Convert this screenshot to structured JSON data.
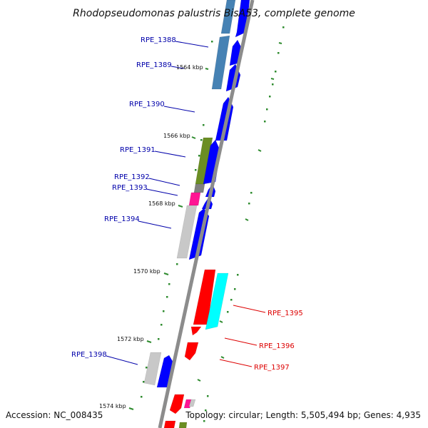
{
  "title": "Rhodopseudomonas palustris BisA53, complete genome",
  "footer": {
    "accession": "Accession: NC_008435",
    "topology": "Topology: circular; Length: 5,505,494 bp; Genes: 4,935"
  },
  "colors": {
    "backbone": "#8c8c8c",
    "tick": "#2e8b2e",
    "label_left": "#0000aa",
    "label_right": "#dd0000",
    "blue_arrow": "#0000ff",
    "steelblue": "#4682b4",
    "olive": "#6b8e23",
    "gray": "#808080",
    "pink": "#ff1493",
    "lightgray": "#c8c8c8",
    "red": "#ff0000",
    "cyan": "#00ffff"
  },
  "kbp_labels": [
    {
      "id": "1564",
      "text": "1564 kbp"
    },
    {
      "id": "1566",
      "text": "1566 kbp"
    },
    {
      "id": "1568",
      "text": "1568 kbp"
    },
    {
      "id": "1570",
      "text": "1570 kbp"
    },
    {
      "id": "1572",
      "text": "1572 kbp"
    },
    {
      "id": "1574",
      "text": "1574 kbp"
    }
  ],
  "gene_labels": [
    {
      "id": "RPE_1388",
      "text": "RPE_1388",
      "side": "left"
    },
    {
      "id": "RPE_1389",
      "text": "RPE_1389",
      "side": "left"
    },
    {
      "id": "RPE_1390",
      "text": "RPE_1390",
      "side": "left"
    },
    {
      "id": "RPE_1391",
      "text": "RPE_1391",
      "side": "left"
    },
    {
      "id": "RPE_1392",
      "text": "RPE_1392",
      "side": "left"
    },
    {
      "id": "RPE_1393",
      "text": "RPE_1393",
      "side": "left"
    },
    {
      "id": "RPE_1394",
      "text": "RPE_1394",
      "side": "left"
    },
    {
      "id": "RPE_1395",
      "text": "RPE_1395",
      "side": "right"
    },
    {
      "id": "RPE_1396",
      "text": "RPE_1396",
      "side": "right"
    },
    {
      "id": "RPE_1397",
      "text": "RPE_1397",
      "side": "right"
    },
    {
      "id": "RPE_1398",
      "text": "RPE_1398",
      "side": "left"
    }
  ]
}
